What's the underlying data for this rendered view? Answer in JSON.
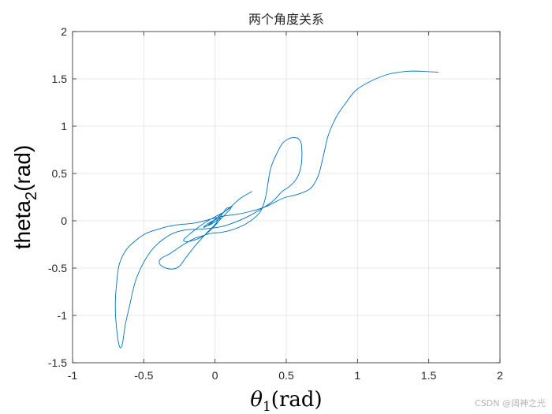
{
  "chart_data": {
    "type": "line",
    "title": "两个角度关系",
    "xlabel": {
      "base": "θ",
      "sub": "1",
      "rest": "(rad)"
    },
    "ylabel": {
      "base": "theta",
      "sub": "2",
      "rest": "(rad)"
    },
    "xlim": [
      -1,
      2
    ],
    "ylim": [
      -1.5,
      2
    ],
    "xticks": [
      -1,
      -0.5,
      0,
      0.5,
      1,
      1.5,
      2
    ],
    "yticks": [
      -1.5,
      -1,
      -0.5,
      0,
      0.5,
      1,
      1.5,
      2
    ],
    "xtick_labels": [
      "-1",
      "-0.5",
      "0",
      "0.5",
      "1",
      "1.5",
      "2"
    ],
    "ytick_labels": [
      "-1.5",
      "-1",
      "-0.5",
      "0",
      "0.5",
      "1",
      "1.5",
      "2"
    ],
    "grid": true,
    "line_color": "#0072bd",
    "series": [
      {
        "x": [
          1.57,
          1.45,
          1.35,
          1.22,
          1.1,
          0.99,
          0.92,
          0.86,
          0.82,
          0.79,
          0.77,
          0.75,
          0.73,
          0.7,
          0.66,
          0.58,
          0.5,
          0.45,
          0.4,
          0.34,
          0.25,
          0.16,
          0.06,
          0.0,
          -0.05,
          -0.1,
          -0.17,
          -0.25,
          -0.33,
          -0.4,
          -0.48,
          -0.55,
          -0.62,
          -0.67,
          -0.69,
          -0.7,
          -0.69,
          -0.67,
          -0.65,
          -0.63,
          -0.6,
          -0.55,
          -0.45,
          -0.33,
          -0.22,
          -0.12,
          -0.04,
          0.05,
          0.15,
          0.25,
          0.33,
          0.4,
          0.44,
          0.47,
          0.52,
          0.57,
          0.6,
          0.61,
          0.6,
          0.55,
          0.48,
          0.43,
          0.39,
          0.37,
          0.35,
          0.31,
          0.22,
          0.13,
          0.05,
          -0.01,
          -0.05,
          -0.09,
          -0.15,
          -0.22,
          -0.27,
          -0.32,
          -0.38,
          -0.39,
          -0.36,
          -0.3,
          -0.25,
          -0.2,
          -0.12,
          -0.04,
          0.0,
          0.03,
          0.06,
          0.08,
          0.1,
          0.11,
          0.08,
          0.04,
          0.0,
          -0.04,
          -0.08,
          -0.12,
          -0.16,
          -0.2,
          -0.22,
          -0.17,
          -0.11,
          -0.05,
          0.01,
          0.06,
          0.1,
          0.12,
          0.08,
          0.02,
          -0.03,
          -0.08,
          -0.05,
          0.0,
          0.04,
          0.02,
          -0.02,
          -0.05,
          -0.03,
          0.02,
          0.07,
          0.12,
          0.18,
          0.26
        ],
        "y": [
          1.57,
          1.58,
          1.58,
          1.55,
          1.48,
          1.38,
          1.25,
          1.12,
          1.0,
          0.88,
          0.75,
          0.62,
          0.5,
          0.4,
          0.33,
          0.28,
          0.25,
          0.22,
          0.18,
          0.14,
          0.1,
          0.07,
          0.05,
          0.03,
          0.01,
          -0.01,
          -0.03,
          -0.04,
          -0.06,
          -0.09,
          -0.13,
          -0.2,
          -0.3,
          -0.45,
          -0.65,
          -0.9,
          -1.15,
          -1.33,
          -1.3,
          -1.1,
          -0.9,
          -0.6,
          -0.32,
          -0.16,
          -0.1,
          -0.09,
          -0.08,
          -0.06,
          -0.01,
          0.06,
          0.13,
          0.2,
          0.26,
          0.31,
          0.36,
          0.44,
          0.55,
          0.7,
          0.84,
          0.88,
          0.83,
          0.7,
          0.55,
          0.38,
          0.22,
          0.08,
          -0.03,
          -0.09,
          -0.12,
          -0.13,
          -0.14,
          -0.16,
          -0.19,
          -0.25,
          -0.3,
          -0.35,
          -0.4,
          -0.45,
          -0.49,
          -0.51,
          -0.48,
          -0.38,
          -0.23,
          -0.1,
          -0.04,
          0.03,
          0.09,
          0.13,
          0.14,
          0.13,
          0.08,
          0.02,
          -0.05,
          -0.11,
          -0.16,
          -0.19,
          -0.21,
          -0.22,
          -0.2,
          -0.13,
          -0.06,
          0.0,
          0.05,
          0.09,
          0.13,
          0.15,
          0.11,
          0.04,
          -0.03,
          -0.07,
          -0.03,
          0.01,
          0.03,
          0.01,
          -0.03,
          -0.05,
          -0.02,
          0.04,
          0.1,
          0.16,
          0.24,
          0.31
        ]
      }
    ]
  },
  "watermark": "CSDN @阔神之光"
}
